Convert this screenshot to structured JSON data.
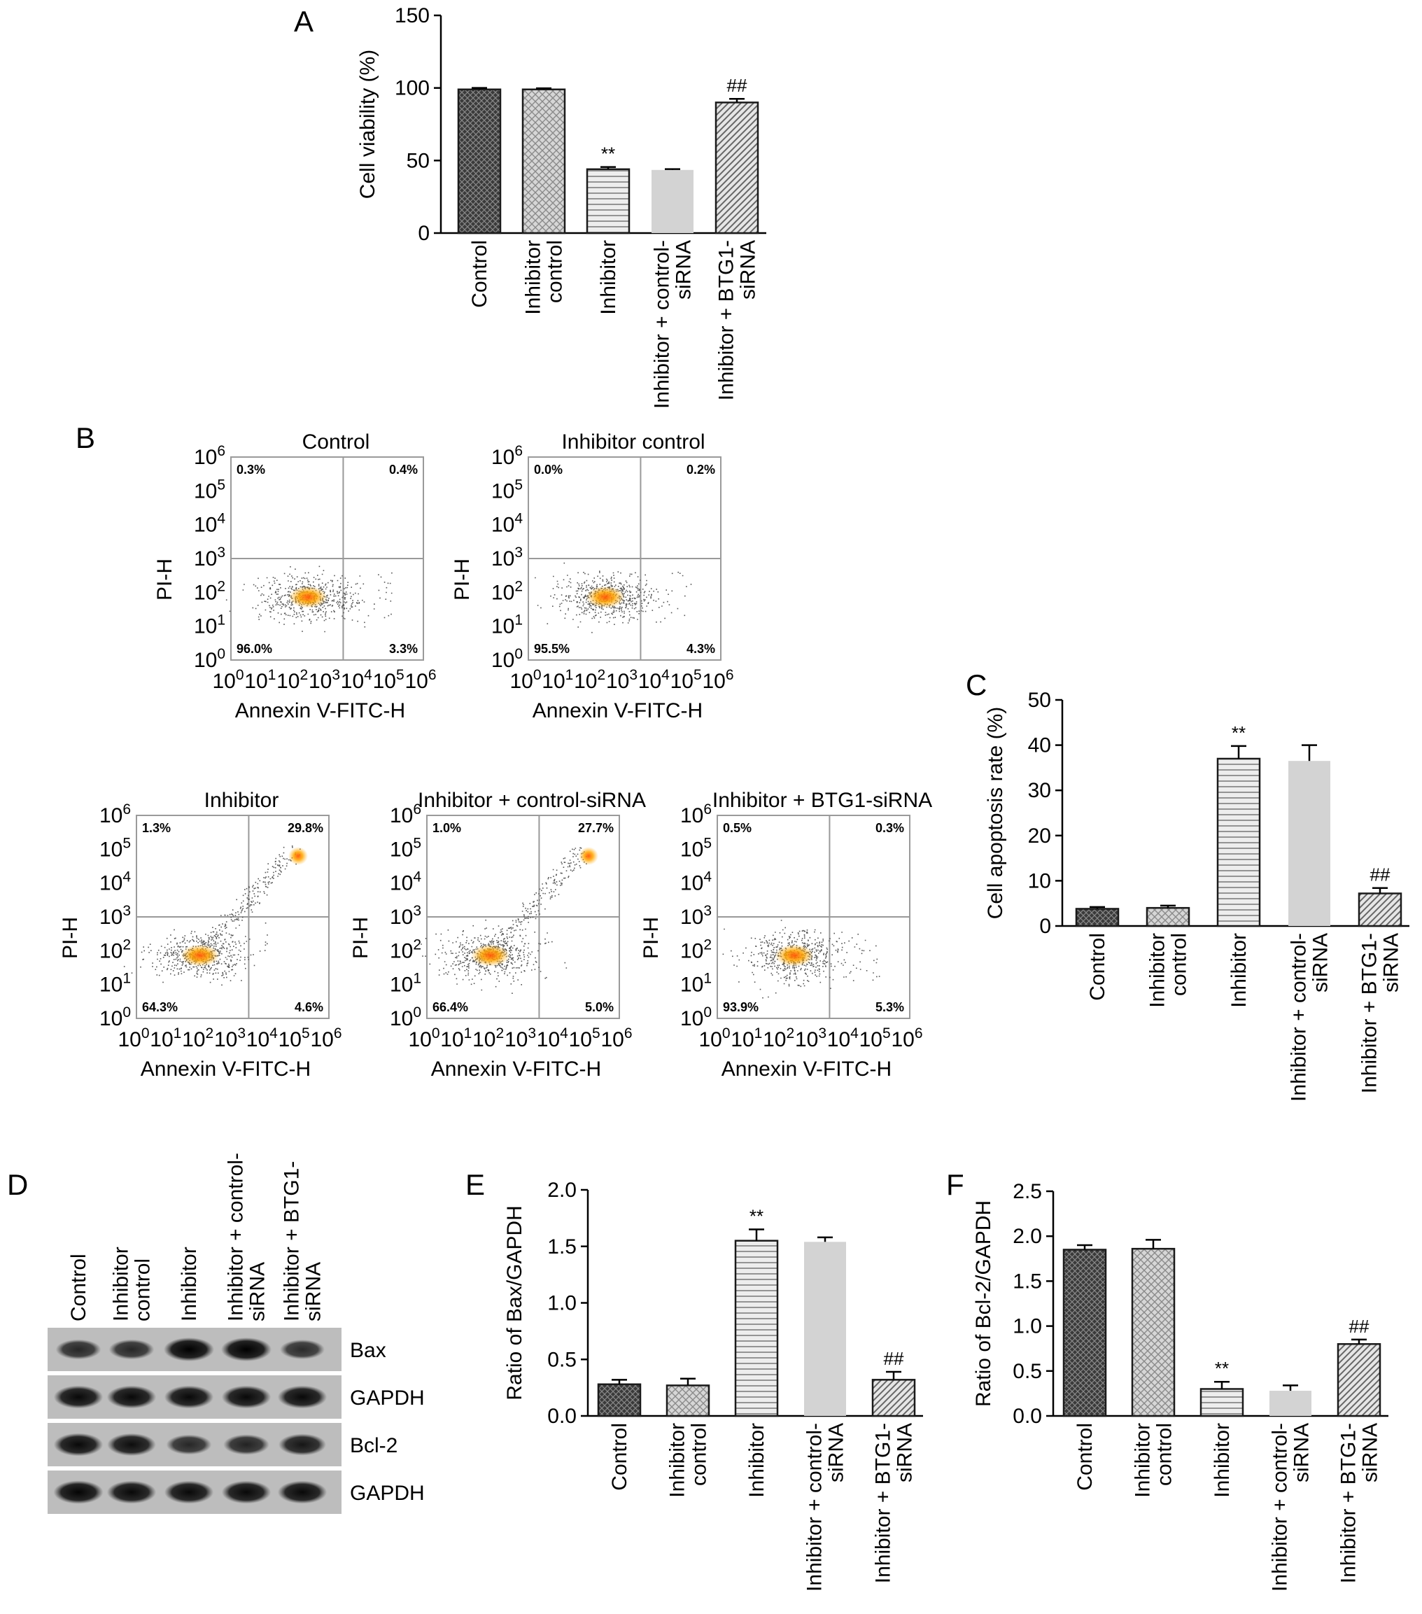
{
  "panel_labels": {
    "A": "A",
    "B": "B",
    "C": "C",
    "D": "D",
    "E": "E",
    "F": "F"
  },
  "groups": [
    "Control",
    "Inhibitor control",
    "Inhibitor",
    "Inhibitor + control-siRNA",
    "Inhibitor + BTG1-siRNA"
  ],
  "group_label_lines": [
    [
      "Control"
    ],
    [
      "Inhibitor",
      "control"
    ],
    [
      "Inhibitor"
    ],
    [
      "Inhibitor + control-",
      "siRNA"
    ],
    [
      "Inhibitor + BTG1-",
      "siRNA"
    ]
  ],
  "bar_styles": [
    {
      "fill": "crosshatch-dark"
    },
    {
      "fill": "checker-light"
    },
    {
      "fill": "horizontal-lines"
    },
    {
      "fill": "solid-light-gray",
      "color": "#d3d3d3"
    },
    {
      "fill": "diagonal-lines"
    }
  ],
  "chart_data": [
    {
      "id": "A",
      "type": "bar",
      "categories": [
        "Control",
        "Inhibitor control",
        "Inhibitor",
        "Inhibitor + control-siRNA",
        "Inhibitor + BTG1-siRNA"
      ],
      "values": [
        99,
        99,
        44,
        43.5,
        90
      ],
      "errors": [
        1,
        0.8,
        1.5,
        0.6,
        2.5
      ],
      "annotations": [
        "",
        "",
        "**",
        "",
        "##"
      ],
      "ylabel": "Cell viability (%)",
      "ylim": [
        0,
        150
      ],
      "yticks": [
        "0",
        "50",
        "100",
        "150"
      ]
    },
    {
      "id": "C",
      "type": "bar",
      "categories": [
        "Control",
        "Inhibitor control",
        "Inhibitor",
        "Inhibitor + control-siRNA",
        "Inhibitor + BTG1-siRNA"
      ],
      "values": [
        3.8,
        4,
        37,
        36.5,
        7.2
      ],
      "errors": [
        0.4,
        0.5,
        2.8,
        3.5,
        1.2
      ],
      "annotations": [
        "",
        "",
        "**",
        "",
        "##"
      ],
      "ylabel": "Cell apoptosis rate (%)",
      "ylim": [
        0,
        50
      ],
      "yticks": [
        "0",
        "10",
        "20",
        "30",
        "40",
        "50"
      ]
    },
    {
      "id": "E",
      "type": "bar",
      "categories": [
        "Control",
        "Inhibitor control",
        "Inhibitor",
        "Inhibitor + control-siRNA",
        "Inhibitor + BTG1-siRNA"
      ],
      "values": [
        0.28,
        0.27,
        1.55,
        1.54,
        0.32
      ],
      "errors": [
        0.04,
        0.06,
        0.1,
        0.04,
        0.07
      ],
      "annotations": [
        "",
        "",
        "**",
        "",
        "##"
      ],
      "ylabel": "Ratio of Bax/GAPDH",
      "ylim": [
        0,
        2
      ],
      "yticks": [
        "0.0",
        "0.5",
        "1.0",
        "1.5",
        "2.0"
      ]
    },
    {
      "id": "F",
      "type": "bar",
      "categories": [
        "Control",
        "Inhibitor control",
        "Inhibitor",
        "Inhibitor + control-siRNA",
        "Inhibitor + BTG1-siRNA"
      ],
      "values": [
        1.85,
        1.86,
        0.3,
        0.28,
        0.8
      ],
      "errors": [
        0.05,
        0.1,
        0.08,
        0.06,
        0.05
      ],
      "annotations": [
        "",
        "",
        "**",
        "",
        "##"
      ],
      "ylabel": "Ratio of Bcl-2/GAPDH",
      "ylim": [
        0,
        2.5
      ],
      "yticks": [
        "0.0",
        "0.5",
        "1.0",
        "1.5",
        "2.0",
        "2.5"
      ]
    },
    {
      "id": "B",
      "type": "scatter",
      "xlabel": "Annexin V-FITC-H",
      "ylabel": "PI-H",
      "axis_scale": "log10",
      "xlim": [
        0,
        6
      ],
      "ylim": [
        0,
        6
      ],
      "gate_x": 3.5,
      "gate_y": 3.0,
      "plots": [
        {
          "title": "Control",
          "ul": "0.3%",
          "ur": "0.4%",
          "ll": "96.0%",
          "lr": "3.3%"
        },
        {
          "title": "Inhibitor control",
          "ul": "0.0%",
          "ur": "0.2%",
          "ll": "95.5%",
          "lr": "4.3%"
        },
        {
          "title": "Inhibitor",
          "ul": "1.3%",
          "ur": "29.8%",
          "ll": "64.3%",
          "lr": "4.6%"
        },
        {
          "title": "Inhibitor + control-siRNA",
          "ul": "1.0%",
          "ur": "27.7%",
          "ll": "66.4%",
          "lr": "5.0%"
        },
        {
          "title": "Inhibitor + BTG1-siRNA",
          "ul": "0.5%",
          "ur": "0.3%",
          "ll": "93.9%",
          "lr": "5.3%"
        }
      ]
    }
  ],
  "western_blot": {
    "lane_labels": [
      [
        "Control"
      ],
      [
        "Inhibitor",
        "control"
      ],
      [
        "Inhibitor"
      ],
      [
        "Inhibitor + control-",
        "siRNA"
      ],
      [
        "Inhibitor + BTG1-",
        "siRNA"
      ]
    ],
    "rows": [
      {
        "label": "Bax",
        "intensity": [
          0.55,
          0.55,
          1.0,
          1.0,
          0.5
        ]
      },
      {
        "label": "GAPDH",
        "intensity": [
          0.9,
          0.9,
          0.9,
          0.9,
          0.9
        ]
      },
      {
        "label": "Bcl-2",
        "intensity": [
          0.9,
          0.85,
          0.55,
          0.6,
          0.75
        ]
      },
      {
        "label": "GAPDH",
        "intensity": [
          0.95,
          0.9,
          0.9,
          0.9,
          0.9
        ]
      }
    ]
  }
}
